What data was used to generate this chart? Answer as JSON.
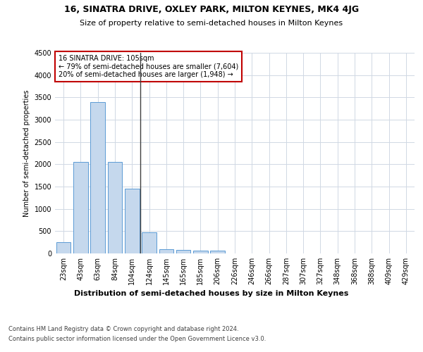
{
  "title1": "16, SINATRA DRIVE, OXLEY PARK, MILTON KEYNES, MK4 4JG",
  "title2": "Size of property relative to semi-detached houses in Milton Keynes",
  "xlabel": "Distribution of semi-detached houses by size in Milton Keynes",
  "ylabel": "Number of semi-detached properties",
  "footer1": "Contains HM Land Registry data © Crown copyright and database right 2024.",
  "footer2": "Contains public sector information licensed under the Open Government Licence v3.0.",
  "annotation_line1": "16 SINATRA DRIVE: 105sqm",
  "annotation_line2": "← 79% of semi-detached houses are smaller (7,604)",
  "annotation_line3": "20% of semi-detached houses are larger (1,948) →",
  "bar_color": "#c5d8ed",
  "bar_edge_color": "#5b9bd5",
  "vline_color": "#404040",
  "annotation_box_edge": "#c00000",
  "background_color": "#ffffff",
  "grid_color": "#d0d8e4",
  "categories": [
    "23sqm",
    "43sqm",
    "63sqm",
    "84sqm",
    "104sqm",
    "124sqm",
    "145sqm",
    "165sqm",
    "185sqm",
    "206sqm",
    "226sqm",
    "246sqm",
    "266sqm",
    "287sqm",
    "307sqm",
    "327sqm",
    "348sqm",
    "368sqm",
    "388sqm",
    "409sqm",
    "429sqm"
  ],
  "values": [
    250,
    2050,
    3400,
    2050,
    1450,
    470,
    100,
    75,
    70,
    60,
    0,
    0,
    0,
    0,
    0,
    0,
    0,
    0,
    0,
    0,
    0
  ],
  "ylim": [
    0,
    4500
  ],
  "yticks": [
    0,
    500,
    1000,
    1500,
    2000,
    2500,
    3000,
    3500,
    4000,
    4500
  ],
  "vline_x": 4.5,
  "title1_fontsize": 9,
  "title2_fontsize": 8,
  "ylabel_fontsize": 7,
  "tick_fontsize": 7,
  "xlabel_fontsize": 8,
  "footer_fontsize": 6,
  "ann_fontsize": 7
}
